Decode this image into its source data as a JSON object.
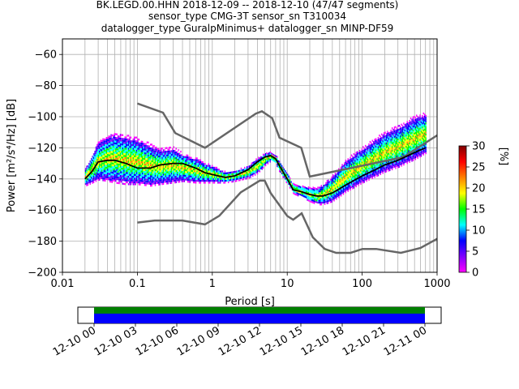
{
  "title": {
    "line1": "BK.LEGD.00.HHN   2018-12-09 -- 2018-12-10  (47/47 segments)",
    "line2": "sensor_type CMG-3T sensor_sn T310034",
    "line3": "datalogger_type GuralpMinimus+ datalogger_sn MINP-DF59"
  },
  "chart_data": [
    {
      "type": "heatmap",
      "name": "ppsd",
      "xlabel": "Period [s]",
      "ylabel": "Power [m²/s⁴/Hz] [dB]",
      "xscale": "log",
      "xlim": [
        0.01,
        1000
      ],
      "ylim": [
        -200,
        -50
      ],
      "xticks": [
        {
          "v": 0.01,
          "label": "0.01"
        },
        {
          "v": 0.1,
          "label": "0.1"
        },
        {
          "v": 1,
          "label": "1"
        },
        {
          "v": 10,
          "label": "10"
        },
        {
          "v": 100,
          "label": "100"
        },
        {
          "v": 1000,
          "label": "1000"
        }
      ],
      "yticks": [
        {
          "v": -60,
          "label": "−60"
        },
        {
          "v": -80,
          "label": "−80"
        },
        {
          "v": -100,
          "label": "−100"
        },
        {
          "v": -120,
          "label": "−120"
        },
        {
          "v": -140,
          "label": "−140"
        },
        {
          "v": -160,
          "label": "−160"
        },
        {
          "v": -180,
          "label": "−180"
        },
        {
          "v": -200,
          "label": "−200"
        }
      ],
      "grid": true,
      "colorbar": {
        "label": "[%]",
        "range": [
          0,
          30
        ],
        "ticks": [
          {
            "v": 0,
            "label": "0"
          },
          {
            "v": 5,
            "label": "5"
          },
          {
            "v": 10,
            "label": "10"
          },
          {
            "v": 15,
            "label": "15"
          },
          {
            "v": 20,
            "label": "20"
          },
          {
            "v": 25,
            "label": "25"
          },
          {
            "v": 30,
            "label": "30"
          }
        ],
        "colors": [
          "#ffffff",
          "#ff00ff",
          "#7f00ff",
          "#0000ff",
          "#00ffff",
          "#00ff00",
          "#ffff00",
          "#ff8000",
          "#ff0000",
          "#800000"
        ]
      },
      "mode_curve": {
        "period": [
          0.02,
          0.025,
          0.03,
          0.04,
          0.05,
          0.07,
          0.1,
          0.15,
          0.2,
          0.3,
          0.4,
          0.6,
          0.8,
          1.2,
          1.5,
          2,
          3,
          4,
          5,
          6,
          7,
          8,
          10,
          12,
          15,
          20,
          25,
          30,
          40,
          60,
          100,
          150,
          200,
          300,
          500,
          700
        ],
        "db": [
          -140,
          -135,
          -129,
          -128,
          -128,
          -130,
          -133,
          -133,
          -131,
          -130,
          -130,
          -133,
          -136,
          -138,
          -139,
          -138,
          -134,
          -129,
          -126,
          -125,
          -127,
          -132,
          -140,
          -147,
          -148,
          -150,
          -151,
          -151,
          -149,
          -144,
          -138,
          -134,
          -131,
          -128,
          -123,
          -120
        ]
      },
      "nhnm": {
        "period": [
          0.1,
          0.22,
          0.32,
          0.8,
          3.8,
          4.6,
          6.3,
          7.9,
          15.4,
          20,
          354.8,
          1000
        ],
        "db": [
          -91.5,
          -97.4,
          -110.5,
          -120.0,
          -98.0,
          -96.5,
          -101.0,
          -113.5,
          -120.0,
          -138.5,
          -126.0,
          -112.0
        ]
      },
      "nlnm": {
        "period": [
          0.1,
          0.17,
          0.4,
          0.8,
          1.24,
          2.4,
          4.3,
          5,
          6,
          10,
          12,
          15.6,
          21.9,
          31.6,
          45,
          70,
          101,
          154,
          328,
          600,
          1000
        ],
        "db": [
          -168.0,
          -166.7,
          -166.7,
          -169.2,
          -163.7,
          -148.6,
          -141.1,
          -141.1,
          -149.0,
          -163.8,
          -166.2,
          -162.1,
          -177.5,
          -185.0,
          -187.5,
          -187.5,
          -185.0,
          -185.0,
          -187.5,
          -184.4,
          -178.5
        ]
      },
      "density": {
        "period": [
          0.02,
          0.025,
          0.03,
          0.04,
          0.05,
          0.07,
          0.1,
          0.15,
          0.2,
          0.3,
          0.4,
          0.6,
          0.8,
          1.2,
          1.5,
          2,
          3,
          4,
          5,
          6,
          7,
          8,
          10,
          12,
          15,
          20,
          25,
          30,
          40,
          60,
          100,
          150,
          200,
          300,
          500,
          700
        ],
        "upper_db": [
          -133,
          -124,
          -116,
          -112,
          -111,
          -112,
          -114,
          -118,
          -121,
          -120,
          -124,
          -127,
          -130,
          -134,
          -136,
          -135,
          -132,
          -127,
          -124,
          -123,
          -125,
          -130,
          -137,
          -144,
          -145,
          -146,
          -146,
          -144,
          -138,
          -128,
          -120,
          -114,
          -110,
          -106,
          -100,
          -98
        ],
        "lower_db": [
          -145,
          -143,
          -141,
          -142,
          -143,
          -144,
          -144,
          -145,
          -144,
          -143,
          -142,
          -143,
          -143,
          -143,
          -143,
          -142,
          -140,
          -137,
          -132,
          -129,
          -131,
          -137,
          -144,
          -150,
          -152,
          -155,
          -157,
          -157,
          -155,
          -149,
          -143,
          -139,
          -136,
          -133,
          -128,
          -124
        ]
      }
    },
    {
      "type": "timeline",
      "name": "data-coverage",
      "tick_labels": [
        "12-10 00",
        "12-10 03",
        "12-10 06",
        "12-10 09",
        "12-10 12",
        "12-10 15",
        "12-10 18",
        "12-10 21",
        "12-11 00"
      ],
      "start_hour": 0,
      "end_hour": 24,
      "coverage": [
        {
          "start_hour": 0,
          "end_hour": 24
        }
      ],
      "used": [
        {
          "start_hour": 0,
          "end_hour": 24
        }
      ],
      "colors": {
        "coverage": "#008000",
        "used": "#0000ff"
      }
    }
  ]
}
